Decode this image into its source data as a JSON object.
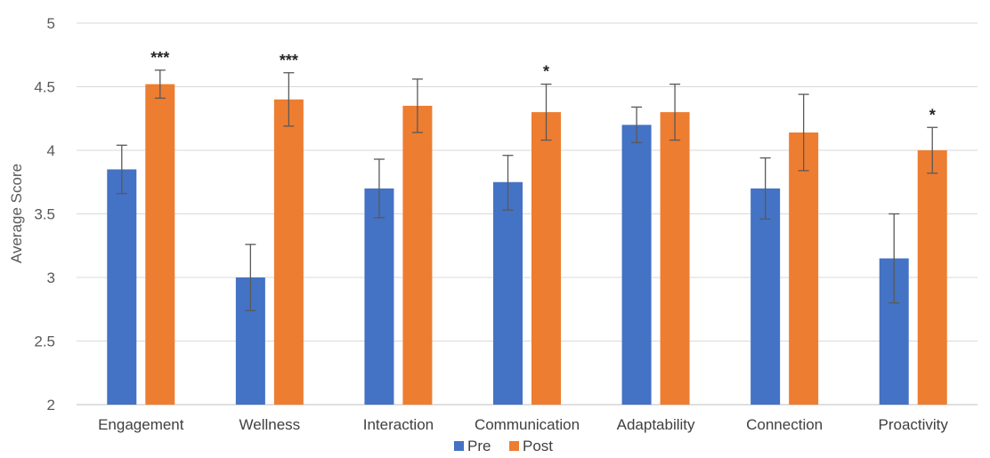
{
  "chart_data": {
    "type": "bar",
    "title": "",
    "xlabel": "",
    "ylabel": "Average Score",
    "ylim": [
      2,
      5
    ],
    "yticks": [
      "2",
      "2.5",
      "3",
      "3.5",
      "4",
      "4.5",
      "5"
    ],
    "grid": true,
    "legend_position": "bottom",
    "categories": [
      "Engagement",
      "Wellness",
      "Interaction",
      "Communication",
      "Adaptability",
      "Connection",
      "Proactivity"
    ],
    "series": [
      {
        "name": "Pre",
        "color": "#4472C4",
        "values": [
          3.85,
          3.0,
          3.7,
          3.75,
          4.2,
          3.7,
          3.15
        ],
        "error_low": [
          3.66,
          2.74,
          3.47,
          3.53,
          4.06,
          3.46,
          2.8
        ],
        "error_high": [
          4.04,
          3.26,
          3.93,
          3.96,
          4.34,
          3.94,
          3.5
        ]
      },
      {
        "name": "Post",
        "color": "#ED7D31",
        "values": [
          4.52,
          4.4,
          4.35,
          4.3,
          4.3,
          4.14,
          4.0
        ],
        "error_low": [
          4.41,
          4.19,
          4.14,
          4.08,
          4.08,
          3.84,
          3.82
        ],
        "error_high": [
          4.63,
          4.61,
          4.56,
          4.52,
          4.52,
          4.44,
          4.18
        ]
      }
    ],
    "annotations": [
      "***",
      "***",
      "",
      "*",
      "",
      "",
      "*"
    ]
  }
}
